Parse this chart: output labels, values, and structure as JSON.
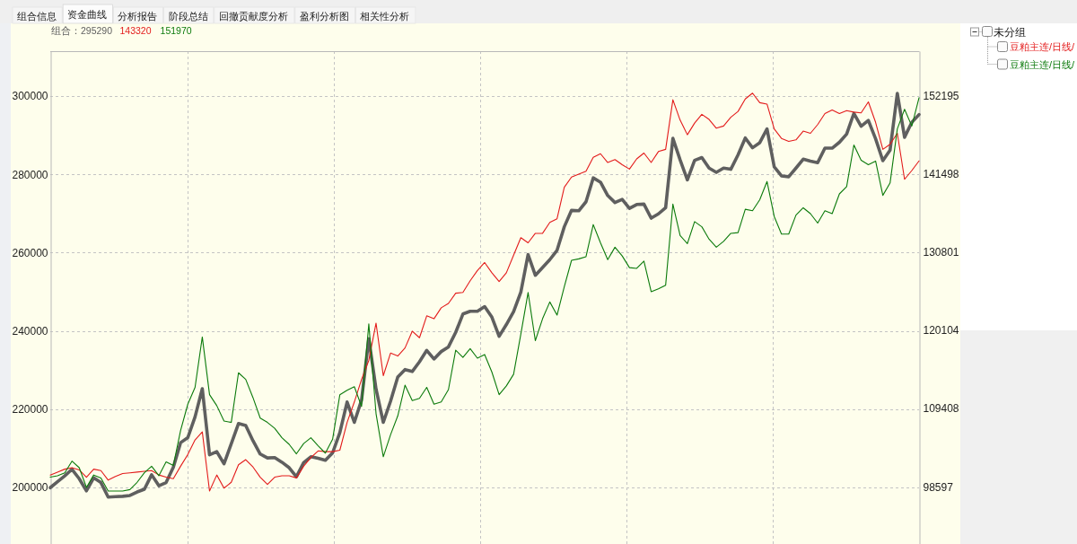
{
  "chart_data": {
    "type": "line",
    "annotations": [
      "组合信息",
      "资金曲线",
      "分析报告",
      "阶段总结",
      "回撤贡献度分析",
      "盈利分析图",
      "相关性分析",
      "组合：295290",
      "143320",
      "151970"
    ],
    "categories": [
      null,
      null,
      null,
      null,
      null,
      null,
      null,
      null,
      null,
      null,
      null,
      null,
      null,
      null,
      null,
      null,
      null,
      null,
      null,
      null,
      null,
      null,
      null,
      null,
      null,
      null,
      null,
      null,
      null,
      null,
      null,
      null,
      null,
      null,
      null,
      null,
      null,
      null,
      null,
      null,
      null,
      null,
      null,
      null,
      null,
      null,
      null,
      null,
      null,
      null,
      null,
      null,
      null,
      null,
      null,
      null,
      null,
      null,
      null,
      null,
      null,
      null,
      null,
      null,
      null,
      null,
      null,
      null,
      null,
      null,
      null,
      null,
      null,
      null,
      null,
      null,
      null,
      null,
      null,
      null,
      null,
      null,
      null,
      null,
      null,
      null,
      null,
      null,
      null,
      null,
      null,
      null,
      null,
      null,
      null,
      null,
      null,
      null,
      null,
      null,
      null,
      null,
      null,
      null,
      null,
      null,
      null,
      null,
      null,
      null,
      null,
      null,
      null,
      null,
      null,
      null,
      null,
      null,
      null,
      null,
      null
    ],
    "ylim": [
      185500,
      311500
    ],
    "yticks": [
      200000,
      220000,
      240000,
      260000,
      280000,
      300000
    ],
    "y2lim": [
      90850,
      158350
    ],
    "y2ticks": [
      98597,
      109408,
      120104,
      130801,
      141498,
      152195
    ],
    "grid": true,
    "legend": "right",
    "legend_title": "未分组",
    "series": [
      {
        "color": "#5f5f5f",
        "values": [
          199900,
          201400,
          202900,
          204600,
          202200,
          199100,
          202400,
          201200,
          197500,
          197600,
          197700,
          197900,
          198800,
          199500,
          203200,
          200400,
          201200,
          205100,
          211400,
          212700,
          218000,
          225200,
          208300,
          209100,
          206000,
          211100,
          216300,
          215800,
          211900,
          208500,
          207500,
          207600,
          206400,
          205000,
          202700,
          206300,
          207800,
          207400,
          206900,
          208800,
          214000,
          221800,
          216600,
          222300,
          238000,
          225100,
          216600,
          222000,
          228200,
          230100,
          229600,
          232100,
          235000,
          232800,
          234700,
          235900,
          239600,
          244300,
          245000,
          245000,
          246200,
          243500,
          238600,
          241600,
          244900,
          249900,
          259500,
          254200,
          256200,
          258200,
          260600,
          266600,
          270800,
          270700,
          273000,
          279100,
          278000,
          274600,
          272800,
          273600,
          271300,
          272300,
          272400,
          268800,
          269900,
          271500,
          289200,
          283700,
          278600,
          283600,
          284300,
          281600,
          280500,
          281600,
          281300,
          285000,
          289300,
          286800,
          288100,
          291600,
          281900,
          279600,
          279400,
          281600,
          283900,
          283400,
          283000,
          286700,
          286700,
          288200,
          290300,
          295600,
          292300,
          293800,
          289100,
          283500,
          286200,
          300700,
          289500,
          293300,
          295290
        ]
      },
      {
        "name": "豆粕主连/日线/",
        "color": "#e31b1b",
        "axis": "y2",
        "values": [
          100300,
          100700,
          101100,
          101300,
          101000,
          100000,
          101100,
          100900,
          99600,
          100100,
          100500,
          100600,
          100700,
          100800,
          100900,
          100300,
          100000,
          99800,
          101500,
          103100,
          105100,
          106200,
          98100,
          100300,
          98500,
          99300,
          101700,
          102400,
          101400,
          100000,
          99000,
          100000,
          100200,
          100200,
          99900,
          101500,
          102700,
          103600,
          103500,
          103500,
          103700,
          107500,
          110300,
          113400,
          116000,
          121100,
          113900,
          117000,
          116600,
          117700,
          120000,
          119100,
          122100,
          121700,
          123200,
          123800,
          125200,
          125300,
          126900,
          128300,
          129400,
          128000,
          126800,
          128000,
          130400,
          132800,
          132100,
          133400,
          133400,
          134900,
          135400,
          139700,
          141100,
          141500,
          141900,
          143800,
          144300,
          143100,
          143500,
          142800,
          142200,
          143600,
          144400,
          143100,
          144600,
          144900,
          151700,
          148900,
          146900,
          148500,
          149700,
          149000,
          147800,
          148100,
          149300,
          150100,
          151800,
          152600,
          151300,
          151100,
          147700,
          146400,
          146000,
          146200,
          147400,
          147100,
          148300,
          149800,
          150300,
          149800,
          150200,
          150000,
          149900,
          151400,
          148600,
          144900,
          145600,
          147100,
          140800,
          142000,
          143320
        ]
      },
      {
        "name": "豆粕主连/日线/",
        "color": "#0b7a0b",
        "axis": "y2",
        "values": [
          100000,
          100200,
          100600,
          102200,
          101300,
          98600,
          100300,
          99900,
          98100,
          98100,
          98100,
          98300,
          99300,
          100600,
          101500,
          100200,
          102100,
          101600,
          106400,
          110000,
          112300,
          119200,
          111300,
          109800,
          107700,
          107500,
          114300,
          113400,
          110900,
          108100,
          107500,
          106700,
          105400,
          104500,
          103200,
          104600,
          105400,
          104300,
          103300,
          105200,
          111300,
          111900,
          112400,
          109700,
          121000,
          108700,
          102800,
          105800,
          108400,
          112600,
          110500,
          110800,
          112300,
          110000,
          110300,
          112000,
          117400,
          116400,
          117600,
          116300,
          116800,
          114400,
          111300,
          112500,
          114100,
          119600,
          125300,
          118700,
          121700,
          124000,
          122200,
          126100,
          129700,
          129900,
          130200,
          134600,
          132100,
          129800,
          131500,
          130300,
          128700,
          128600,
          129600,
          125400,
          125800,
          126300,
          137400,
          133100,
          132000,
          135000,
          134300,
          132600,
          131500,
          132300,
          133400,
          133500,
          136700,
          136500,
          138000,
          140500,
          135700,
          133300,
          133300,
          135900,
          136900,
          136100,
          134800,
          136500,
          136100,
          138800,
          139800,
          145500,
          143400,
          142800,
          143300,
          138600,
          140300,
          147700,
          150400,
          148100,
          151970
        ]
      }
    ]
  }
}
